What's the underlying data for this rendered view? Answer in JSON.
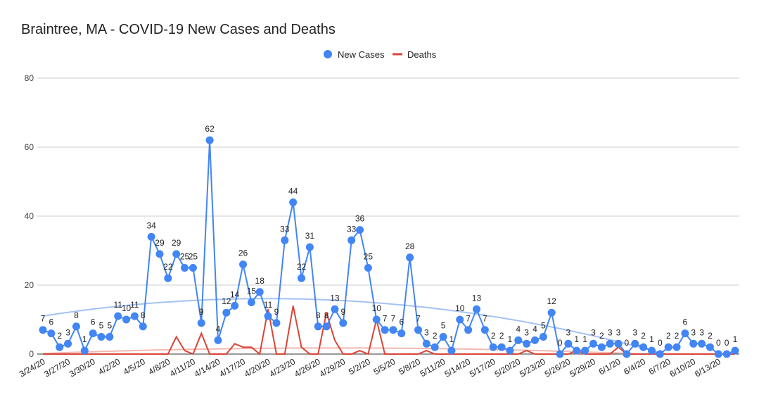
{
  "chart_data": {
    "type": "line",
    "title": "Braintree, MA - COVID-19 New Cases and Deaths",
    "legend": {
      "placement": "top-center",
      "entries": [
        "New Cases",
        "Deaths"
      ]
    },
    "ylim": [
      0,
      80
    ],
    "yticks": [
      "0",
      "20",
      "40",
      "60",
      "80"
    ],
    "grid": true,
    "xlabel": "",
    "ylabel": "",
    "x_tick_labels": [
      "3/24/20",
      "3/27/20",
      "3/30/20",
      "4/2/20",
      "4/5/20",
      "4/8/20",
      "4/11/20",
      "4/14/20",
      "4/17/20",
      "4/20/20",
      "4/23/20",
      "4/26/20",
      "4/29/20",
      "5/2/20",
      "5/5/20",
      "5/8/20",
      "5/11/20",
      "5/14/20",
      "5/17/20",
      "5/20/20",
      "5/23/20",
      "5/26/20",
      "5/29/20",
      "6/1/20",
      "6/4/20",
      "6/7/20",
      "6/10/20",
      "6/13/20"
    ],
    "x_start": "3/24/20",
    "x_end": "6/16/20",
    "series": [
      {
        "name": "New Cases",
        "color": "#4285f4",
        "style": "line-with-points",
        "values": [
          7,
          6,
          2,
          3,
          8,
          1,
          6,
          5,
          5,
          11,
          10,
          11,
          8,
          34,
          29,
          22,
          29,
          25,
          25,
          9,
          62,
          4,
          12,
          14,
          26,
          15,
          18,
          11,
          9,
          33,
          44,
          22,
          31,
          8,
          8,
          13,
          9,
          33,
          36,
          25,
          10,
          7,
          7,
          6,
          28,
          7,
          3,
          2,
          5,
          1,
          10,
          7,
          13,
          7,
          2,
          2,
          1,
          4,
          3,
          4,
          5,
          12,
          0,
          3,
          1,
          1,
          3,
          2,
          3,
          3,
          0,
          3,
          2,
          1,
          0,
          2,
          2,
          6,
          3,
          3,
          2,
          0,
          0,
          1
        ]
      },
      {
        "name": "Deaths",
        "color": "#db4437",
        "style": "line",
        "values": [
          0,
          0,
          0,
          0,
          0,
          0,
          0,
          0,
          0,
          0,
          0,
          0,
          0,
          0,
          0,
          0,
          5,
          1,
          0,
          6,
          0,
          0,
          0,
          3,
          2,
          2,
          0,
          13,
          0,
          0,
          14,
          2,
          0,
          0,
          12,
          4,
          0,
          0,
          1,
          0,
          10,
          0,
          0,
          0,
          0,
          0,
          1,
          0,
          0,
          0,
          0,
          0,
          0,
          0,
          0,
          0,
          0,
          0,
          1,
          0,
          0,
          0,
          0,
          0,
          1,
          0,
          0,
          0,
          0,
          2,
          0,
          0,
          0,
          0,
          0,
          0,
          0,
          0,
          0,
          0,
          0,
          0,
          0,
          0
        ]
      }
    ],
    "trendlines": [
      {
        "series": "New Cases",
        "color": "#a4c2f4"
      },
      {
        "series": "Deaths",
        "color": "#f4b8b1"
      }
    ]
  }
}
